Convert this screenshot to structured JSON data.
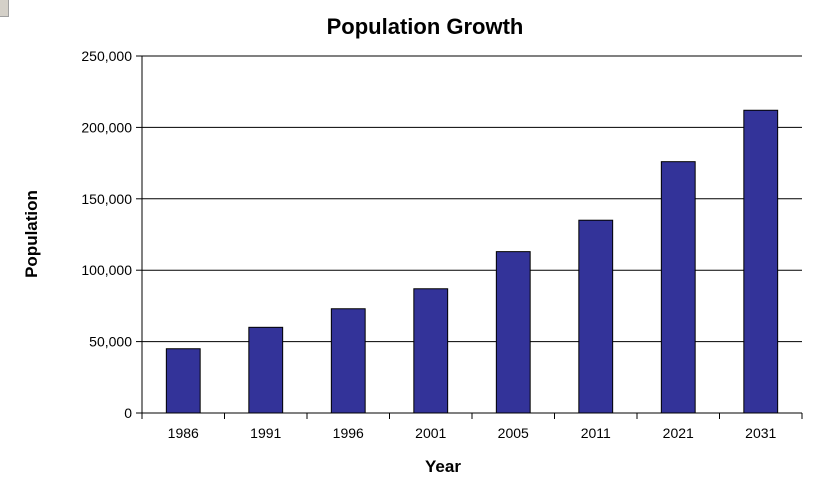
{
  "chart_data": {
    "type": "bar",
    "title": "Population Growth",
    "xlabel": "Year",
    "ylabel": "Population",
    "categories": [
      "1986",
      "1991",
      "1996",
      "2001",
      "2005",
      "2011",
      "2021",
      "2031"
    ],
    "values": [
      45000,
      60000,
      73000,
      87000,
      113000,
      135000,
      176000,
      212000
    ],
    "ylim": [
      0,
      250000
    ],
    "yticks": [
      "0",
      "50,000",
      "100,000",
      "150,000",
      "200,000",
      "250,000"
    ],
    "ytick_values": [
      0,
      50000,
      100000,
      150000,
      200000,
      250000
    ],
    "grid": "horizontal",
    "legend": "none",
    "colors": {
      "bar_fill": "#333399",
      "bar_stroke": "#000000",
      "grid": "#000000",
      "axis": "#000000"
    }
  }
}
